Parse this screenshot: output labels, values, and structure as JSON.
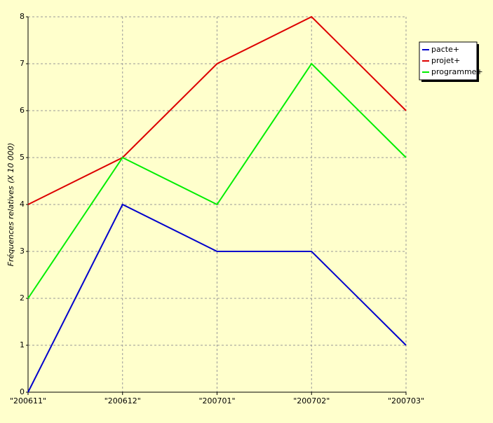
{
  "chart_data": {
    "type": "line",
    "y_label": "Fréquences relatives (X 10 000)",
    "categories": [
      "\"200611\"",
      "\"200612\"",
      "\"200701\"",
      "\"200702\"",
      "\"200703\""
    ],
    "series": [
      {
        "name": "pacte+",
        "color": "#0000cc",
        "values": [
          0,
          4,
          3,
          3,
          1
        ]
      },
      {
        "name": "projet+",
        "color": "#dd0000",
        "values": [
          4,
          5,
          7,
          8,
          6
        ]
      },
      {
        "name": "programme+",
        "color": "#00ee00",
        "values": [
          2,
          5,
          4,
          7,
          5
        ]
      }
    ],
    "ylim": [
      0,
      8
    ],
    "yticks": [
      0,
      1,
      2,
      3,
      4,
      5,
      6,
      7,
      8
    ],
    "grid": true,
    "legend": "right"
  }
}
